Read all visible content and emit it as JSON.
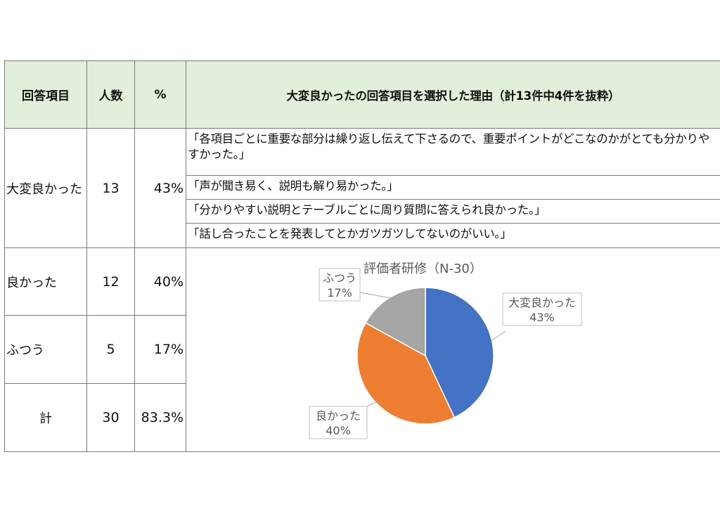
{
  "table": {
    "headers": {
      "item": "回答項目",
      "count": "人数",
      "percent": "%",
      "reason": "大変良かったの回答項目を選択した理由（計13件中4件を抜粋）"
    },
    "rows": [
      {
        "item": "大変良かった",
        "count": "13",
        "percent": "43%"
      },
      {
        "item": "良かった",
        "count": "12",
        "percent": "40%"
      },
      {
        "item": "ふつう",
        "count": "5",
        "percent": "17%"
      },
      {
        "item": "計",
        "count": "30",
        "percent": "83.3%"
      }
    ],
    "reasons": [
      "「各項目ごとに重要な部分は繰り返し伝えて下さるので、重要ポイントがどこなのかがとても分かりやすかった。」",
      "「声が聞き易く、説明も解り易かった。」",
      "「分かりやすい説明とテーブルごとに周り質問に答えられ良かった。」",
      "「話し合ったことを発表してとかガツガツしてないのがいい。」"
    ]
  },
  "chart_data": {
    "type": "pie",
    "title": "評価者研修（N-30）",
    "categories": [
      "大変良かった",
      "良かった",
      "ふつう"
    ],
    "values": [
      43,
      40,
      17
    ],
    "labels": [
      "43%",
      "40%",
      "17%"
    ],
    "colors": [
      "#4472c4",
      "#ed7d31",
      "#a5a5a5"
    ],
    "legend": "none"
  }
}
